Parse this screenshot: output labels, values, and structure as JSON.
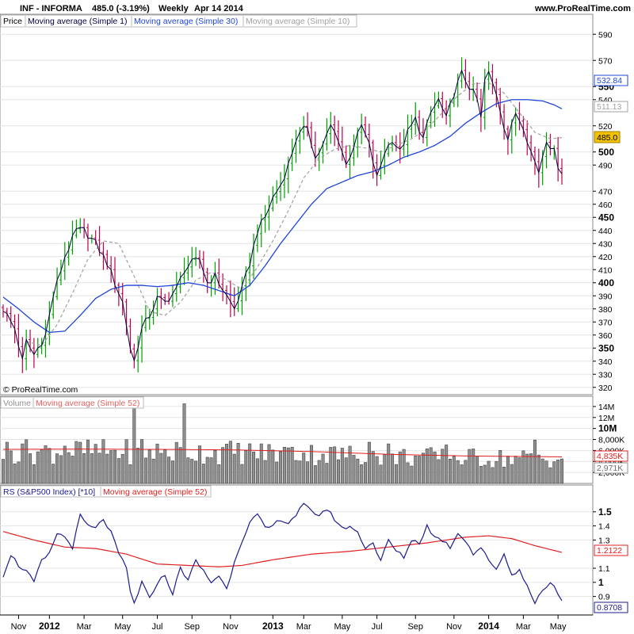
{
  "header": {
    "symbol": "INF - INFORMA",
    "quote": "485.0 (-3.19%)",
    "period": "Weekly",
    "date": "Apr 14 2014",
    "site": "www.ProRealTime.com"
  },
  "colors": {
    "up": "#00a000",
    "down": "#c0004a",
    "ma1": "#000040",
    "ma30": "#1f45d8",
    "ma10": "#a0a0a0",
    "volume_bar": "#909090",
    "red_ma": "#e02020",
    "rs_line": "#1c1c8c",
    "grid": "#e4e4e4"
  },
  "price_panel": {
    "legend": [
      "Price",
      "Moving average (Simple 1)",
      "Moving average (Simple 30)",
      "Moving average (Simple 10)"
    ],
    "copyright": "© ProRealTime.com",
    "tags": {
      "ma30": "532.84",
      "ma10": "511.13",
      "price": "485.0"
    }
  },
  "volume_panel": {
    "legend": [
      "Volume",
      "Moving average (Simple 52)"
    ],
    "tags": {
      "ma52": "4,835K",
      "last": "2,971K"
    }
  },
  "rs_panel": {
    "legend": [
      "RS (S&P500 Index) [*10]",
      "Moving average (Simple 52)"
    ],
    "tags": {
      "ma52": "1.2122",
      "last": "0.8708"
    }
  },
  "chart_data": [
    {
      "type": "candlestick",
      "title": "INF - INFORMA",
      "frequency": "Weekly",
      "ylim": [
        315,
        595
      ],
      "y_ticks": [
        {
          "v": 590,
          "label": "590",
          "major": false
        },
        {
          "v": 570,
          "label": "570",
          "major": false
        },
        {
          "v": 550,
          "label": "550",
          "major": true
        },
        {
          "v": 540,
          "label": "540",
          "major": false
        },
        {
          "v": 520,
          "label": "520",
          "major": false
        },
        {
          "v": 500,
          "label": "500",
          "major": true
        },
        {
          "v": 490,
          "label": "490",
          "major": false
        },
        {
          "v": 470,
          "label": "470",
          "major": false
        },
        {
          "v": 460,
          "label": "460",
          "major": false
        },
        {
          "v": 450,
          "label": "450",
          "major": true
        },
        {
          "v": 440,
          "label": "440",
          "major": false
        },
        {
          "v": 430,
          "label": "430",
          "major": false
        },
        {
          "v": 420,
          "label": "420",
          "major": false
        },
        {
          "v": 410,
          "label": "410",
          "major": false
        },
        {
          "v": 400,
          "label": "400",
          "major": true
        },
        {
          "v": 390,
          "label": "390",
          "major": false
        },
        {
          "v": 380,
          "label": "380",
          "major": false
        },
        {
          "v": 370,
          "label": "370",
          "major": false
        },
        {
          "v": 360,
          "label": "360",
          "major": false
        },
        {
          "v": 350,
          "label": "350",
          "major": true
        },
        {
          "v": 340,
          "label": "340",
          "major": false
        },
        {
          "v": 330,
          "label": "330",
          "major": false
        },
        {
          "v": 320,
          "label": "320",
          "major": false
        }
      ],
      "close_anchors": [
        [
          0,
          380
        ],
        [
          3,
          365
        ],
        [
          5,
          340
        ],
        [
          6,
          355
        ],
        [
          8,
          345
        ],
        [
          11,
          360
        ],
        [
          13,
          390
        ],
        [
          16,
          420
        ],
        [
          19,
          440
        ],
        [
          21,
          440
        ],
        [
          24,
          430
        ],
        [
          27,
          415
        ],
        [
          29,
          400
        ],
        [
          31,
          385
        ],
        [
          33,
          350
        ],
        [
          34,
          340
        ],
        [
          36,
          365
        ],
        [
          38,
          375
        ],
        [
          40,
          388
        ],
        [
          42,
          385
        ],
        [
          45,
          395
        ],
        [
          47,
          410
        ],
        [
          49,
          415
        ],
        [
          51,
          418
        ],
        [
          53,
          400
        ],
        [
          55,
          405
        ],
        [
          57,
          395
        ],
        [
          60,
          380
        ],
        [
          62,
          395
        ],
        [
          64,
          415
        ],
        [
          66,
          440
        ],
        [
          68,
          450
        ],
        [
          70,
          465
        ],
        [
          72,
          475
        ],
        [
          74,
          490
        ],
        [
          76,
          510
        ],
        [
          79,
          520
        ],
        [
          81,
          495
        ],
        [
          83,
          505
        ],
        [
          85,
          520
        ],
        [
          87,
          510
        ],
        [
          89,
          490
        ],
        [
          91,
          505
        ],
        [
          93,
          520
        ],
        [
          95,
          505
        ],
        [
          97,
          480
        ],
        [
          99,
          500
        ],
        [
          101,
          510
        ],
        [
          103,
          500
        ],
        [
          105,
          515
        ],
        [
          107,
          525
        ],
        [
          109,
          510
        ],
        [
          111,
          530
        ],
        [
          113,
          540
        ],
        [
          115,
          525
        ],
        [
          117,
          545
        ],
        [
          119,
          560
        ],
        [
          121,
          550
        ],
        [
          123,
          540
        ],
        [
          124,
          525
        ],
        [
          125,
          555
        ],
        [
          126,
          560
        ],
        [
          128,
          545
        ],
        [
          130,
          520
        ],
        [
          131,
          510
        ],
        [
          133,
          530
        ],
        [
          135,
          520
        ],
        [
          137,
          500
        ],
        [
          139,
          485
        ],
        [
          141,
          510
        ],
        [
          143,
          500
        ],
        [
          144,
          490
        ],
        [
          145,
          485
        ]
      ],
      "ma30_anchors": [
        [
          0,
          389
        ],
        [
          4,
          380
        ],
        [
          8,
          370
        ],
        [
          12,
          362
        ],
        [
          16,
          363
        ],
        [
          20,
          375
        ],
        [
          24,
          388
        ],
        [
          28,
          395
        ],
        [
          32,
          398
        ],
        [
          36,
          398
        ],
        [
          40,
          397
        ],
        [
          44,
          398
        ],
        [
          48,
          400
        ],
        [
          52,
          398
        ],
        [
          56,
          394
        ],
        [
          60,
          390
        ],
        [
          64,
          398
        ],
        [
          68,
          413
        ],
        [
          72,
          430
        ],
        [
          76,
          445
        ],
        [
          80,
          460
        ],
        [
          84,
          472
        ],
        [
          88,
          477
        ],
        [
          92,
          482
        ],
        [
          96,
          485
        ],
        [
          100,
          490
        ],
        [
          104,
          496
        ],
        [
          108,
          500
        ],
        [
          112,
          505
        ],
        [
          116,
          512
        ],
        [
          120,
          522
        ],
        [
          124,
          530
        ],
        [
          128,
          537
        ],
        [
          132,
          540
        ],
        [
          136,
          540
        ],
        [
          140,
          539
        ],
        [
          143,
          536
        ],
        [
          145,
          533
        ]
      ],
      "ma10_anchors": [
        [
          6,
          355
        ],
        [
          10,
          352
        ],
        [
          14,
          368
        ],
        [
          18,
          392
        ],
        [
          22,
          418
        ],
        [
          26,
          432
        ],
        [
          30,
          430
        ],
        [
          34,
          405
        ],
        [
          38,
          378
        ],
        [
          42,
          375
        ],
        [
          46,
          385
        ],
        [
          50,
          402
        ],
        [
          54,
          408
        ],
        [
          58,
          402
        ],
        [
          62,
          395
        ],
        [
          66,
          412
        ],
        [
          70,
          432
        ],
        [
          74,
          455
        ],
        [
          78,
          480
        ],
        [
          82,
          495
        ],
        [
          86,
          502
        ],
        [
          90,
          505
        ],
        [
          94,
          503
        ],
        [
          98,
          500
        ],
        [
          102,
          505
        ],
        [
          106,
          510
        ],
        [
          110,
          518
        ],
        [
          114,
          530
        ],
        [
          118,
          543
        ],
        [
          122,
          552
        ],
        [
          126,
          553
        ],
        [
          130,
          545
        ],
        [
          134,
          530
        ],
        [
          138,
          515
        ],
        [
          142,
          510
        ],
        [
          145,
          511
        ]
      ],
      "x_labels": [
        {
          "i": 4,
          "label": "Nov",
          "bold": false
        },
        {
          "i": 12,
          "label": "2012",
          "bold": true
        },
        {
          "i": 21,
          "label": "Mar",
          "bold": false
        },
        {
          "i": 31,
          "label": "May",
          "bold": false
        },
        {
          "i": 40,
          "label": "Jul",
          "bold": false
        },
        {
          "i": 49,
          "label": "Sep",
          "bold": false
        },
        {
          "i": 59,
          "label": "Nov",
          "bold": false
        },
        {
          "i": 70,
          "label": "2013",
          "bold": true
        },
        {
          "i": 78,
          "label": "Mar",
          "bold": false
        },
        {
          "i": 88,
          "label": "May",
          "bold": false
        },
        {
          "i": 97,
          "label": "Jul",
          "bold": false
        },
        {
          "i": 107,
          "label": "Sep",
          "bold": false
        },
        {
          "i": 117,
          "label": "Nov",
          "bold": false
        },
        {
          "i": 126,
          "label": "2014",
          "bold": true
        },
        {
          "i": 135,
          "label": "Mar",
          "bold": false
        },
        {
          "i": 144,
          "label": "May",
          "bold": false
        }
      ]
    },
    {
      "type": "bar",
      "title": "Volume",
      "ylim": [
        0,
        15000
      ],
      "y_ticks": [
        {
          "v": 14000,
          "label": "14M",
          "major": false
        },
        {
          "v": 12000,
          "label": "12M",
          "major": false
        },
        {
          "v": 10000,
          "label": "10M",
          "major": true
        },
        {
          "v": 8000,
          "label": "8,000K",
          "major": false
        },
        {
          "v": 6000,
          "label": "6,000K",
          "major": false
        },
        {
          "v": 4000,
          "label": "4,000K",
          "major": false
        },
        {
          "v": 2000,
          "label": "2,000K",
          "major": false
        }
      ],
      "volume_spikes": [
        [
          1,
          7500
        ],
        [
          5,
          7200
        ],
        [
          16,
          6800
        ],
        [
          20,
          7500
        ],
        [
          34,
          14000
        ],
        [
          36,
          8000
        ],
        [
          47,
          14500
        ],
        [
          75,
          6600
        ],
        [
          95,
          7500
        ],
        [
          100,
          7200
        ],
        [
          115,
          7000
        ],
        [
          138,
          7900
        ]
      ],
      "ma52_anchors": [
        [
          0,
          6200
        ],
        [
          20,
          6250
        ],
        [
          40,
          6200
        ],
        [
          60,
          6100
        ],
        [
          80,
          5800
        ],
        [
          100,
          5300
        ],
        [
          120,
          5000
        ],
        [
          145,
          4835
        ]
      ]
    },
    {
      "type": "line",
      "title": "RS (S&P500 Index) [*10]",
      "ylim": [
        0.78,
        1.6
      ],
      "y_ticks": [
        {
          "v": 1.5,
          "label": "1.5",
          "major": true
        },
        {
          "v": 1.4,
          "label": "1.4",
          "major": false
        },
        {
          "v": 1.3,
          "label": "1.3",
          "major": false
        },
        {
          "v": 1.1,
          "label": "1.1",
          "major": false
        },
        {
          "v": 1.0,
          "label": "1",
          "major": true
        },
        {
          "v": 0.9,
          "label": "0.9",
          "major": false
        }
      ],
      "rs_anchors": [
        [
          0,
          1.05
        ],
        [
          2,
          1.2
        ],
        [
          4,
          1.12
        ],
        [
          6,
          1.08
        ],
        [
          8,
          1.0
        ],
        [
          10,
          1.15
        ],
        [
          12,
          1.2
        ],
        [
          14,
          1.35
        ],
        [
          16,
          1.32
        ],
        [
          18,
          1.25
        ],
        [
          20,
          1.47
        ],
        [
          22,
          1.4
        ],
        [
          24,
          1.38
        ],
        [
          26,
          1.45
        ],
        [
          28,
          1.35
        ],
        [
          30,
          1.2
        ],
        [
          32,
          1.1
        ],
        [
          33,
          0.93
        ],
        [
          34,
          0.85
        ],
        [
          36,
          1.0
        ],
        [
          38,
          0.88
        ],
        [
          40,
          1.0
        ],
        [
          42,
          1.05
        ],
        [
          44,
          0.92
        ],
        [
          46,
          1.1
        ],
        [
          48,
          1.02
        ],
        [
          50,
          1.15
        ],
        [
          52,
          1.08
        ],
        [
          54,
          1.0
        ],
        [
          56,
          1.05
        ],
        [
          58,
          0.95
        ],
        [
          60,
          1.15
        ],
        [
          62,
          1.3
        ],
        [
          64,
          1.42
        ],
        [
          66,
          1.48
        ],
        [
          68,
          1.38
        ],
        [
          70,
          1.4
        ],
        [
          72,
          1.45
        ],
        [
          74,
          1.42
        ],
        [
          76,
          1.48
        ],
        [
          78,
          1.55
        ],
        [
          80,
          1.5
        ],
        [
          82,
          1.48
        ],
        [
          84,
          1.52
        ],
        [
          86,
          1.45
        ],
        [
          88,
          1.38
        ],
        [
          90,
          1.4
        ],
        [
          92,
          1.35
        ],
        [
          94,
          1.25
        ],
        [
          96,
          1.28
        ],
        [
          98,
          1.15
        ],
        [
          100,
          1.3
        ],
        [
          102,
          1.22
        ],
        [
          104,
          1.18
        ],
        [
          106,
          1.3
        ],
        [
          108,
          1.28
        ],
        [
          110,
          1.4
        ],
        [
          112,
          1.32
        ],
        [
          114,
          1.3
        ],
        [
          116,
          1.25
        ],
        [
          118,
          1.35
        ],
        [
          120,
          1.3
        ],
        [
          122,
          1.2
        ],
        [
          124,
          1.25
        ],
        [
          126,
          1.15
        ],
        [
          128,
          1.1
        ],
        [
          130,
          1.2
        ],
        [
          132,
          1.05
        ],
        [
          134,
          1.1
        ],
        [
          135,
          1.02
        ],
        [
          137,
          0.92
        ],
        [
          138,
          0.85
        ],
        [
          140,
          0.95
        ],
        [
          142,
          1.0
        ],
        [
          143,
          0.97
        ],
        [
          145,
          0.87
        ]
      ],
      "ma52_anchors": [
        [
          0,
          1.36
        ],
        [
          8,
          1.3
        ],
        [
          16,
          1.25
        ],
        [
          24,
          1.24
        ],
        [
          32,
          1.2
        ],
        [
          40,
          1.13
        ],
        [
          48,
          1.12
        ],
        [
          56,
          1.11
        ],
        [
          62,
          1.12
        ],
        [
          70,
          1.16
        ],
        [
          80,
          1.2
        ],
        [
          90,
          1.22
        ],
        [
          100,
          1.25
        ],
        [
          110,
          1.28
        ],
        [
          120,
          1.32
        ],
        [
          126,
          1.33
        ],
        [
          132,
          1.31
        ],
        [
          138,
          1.26
        ],
        [
          145,
          1.2122
        ]
      ]
    }
  ]
}
